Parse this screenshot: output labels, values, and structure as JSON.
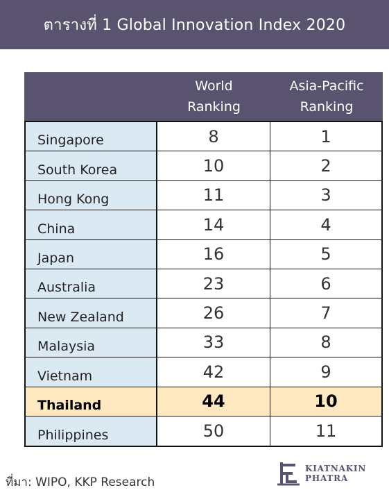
{
  "banner": {
    "title": "ตารางที่ 1 Global Innovation Index 2020"
  },
  "table": {
    "headers": {
      "blank": "",
      "world": [
        "World",
        "Ranking"
      ],
      "asia": [
        "Asia-Pacific",
        "Ranking"
      ]
    },
    "rows": [
      {
        "country": "Singapore",
        "world": "8",
        "asia": "1",
        "highlight": false
      },
      {
        "country": "South Korea",
        "world": "10",
        "asia": "2",
        "highlight": false
      },
      {
        "country": "Hong Kong",
        "world": "11",
        "asia": "3",
        "highlight": false
      },
      {
        "country": "China",
        "world": "14",
        "asia": "4",
        "highlight": false
      },
      {
        "country": "Japan",
        "world": "16",
        "asia": "5",
        "highlight": false
      },
      {
        "country": "Australia",
        "world": "23",
        "asia": "6",
        "highlight": false
      },
      {
        "country": "New Zealand",
        "world": "26",
        "asia": "7",
        "highlight": false
      },
      {
        "country": "Malaysia",
        "world": "33",
        "asia": "8",
        "highlight": false
      },
      {
        "country": "Vietnam",
        "world": "42",
        "asia": "9",
        "highlight": false
      },
      {
        "country": "Thailand",
        "world": "44",
        "asia": "10",
        "highlight": true
      },
      {
        "country": "Philippines",
        "world": "50",
        "asia": "11",
        "highlight": false
      }
    ]
  },
  "source": "ที่มา: WIPO, KKP Research",
  "logo": {
    "line1": "KIATNAKIN",
    "line2": "PHATRA",
    "icon": "kkp-logo-icon"
  },
  "colors": {
    "header_bg": "#5a5370",
    "country_bg": "#dbe9f3",
    "highlight_bg": "#fde8c0"
  }
}
